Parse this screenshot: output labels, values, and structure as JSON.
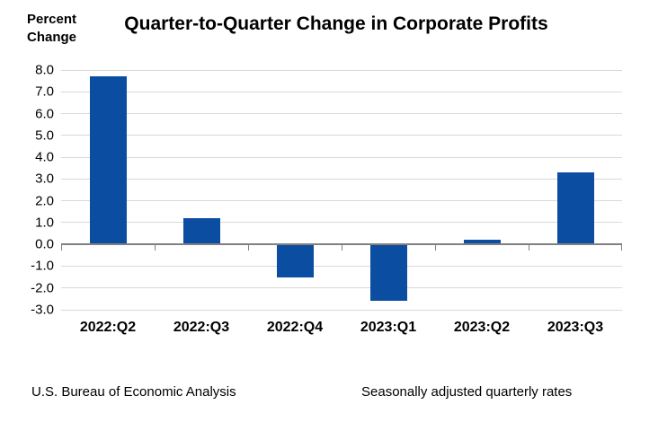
{
  "header": {
    "y_axis_unit_label": "Percent\nChange",
    "title": "Quarter-to-Quarter Change in Corporate Profits"
  },
  "chart_data": {
    "type": "bar",
    "title": "Quarter-to-Quarter Change in Corporate Profits",
    "categories": [
      "2022:Q2",
      "2022:Q3",
      "2022:Q4",
      "2023:Q1",
      "2023:Q2",
      "2023:Q3"
    ],
    "values": [
      7.7,
      1.2,
      -1.5,
      -2.6,
      0.2,
      3.3
    ],
    "ylabel": "Percent Change",
    "xlabel": "",
    "ylim": [
      -3.0,
      8.0
    ],
    "ytick_step": 1.0,
    "ytick_labels": [
      "8.0",
      "7.0",
      "6.0",
      "5.0",
      "4.0",
      "3.0",
      "2.0",
      "1.0",
      "0.0",
      "-1.0",
      "-2.0",
      "-3.0"
    ],
    "grid": true,
    "legend": "none",
    "bar_color": "#0b4da1",
    "gridline_color": "#d9d9d9",
    "axis_color": "#808080"
  },
  "footer": {
    "source": "U.S. Bureau of Economic Analysis",
    "note": "Seasonally adjusted quarterly rates"
  }
}
